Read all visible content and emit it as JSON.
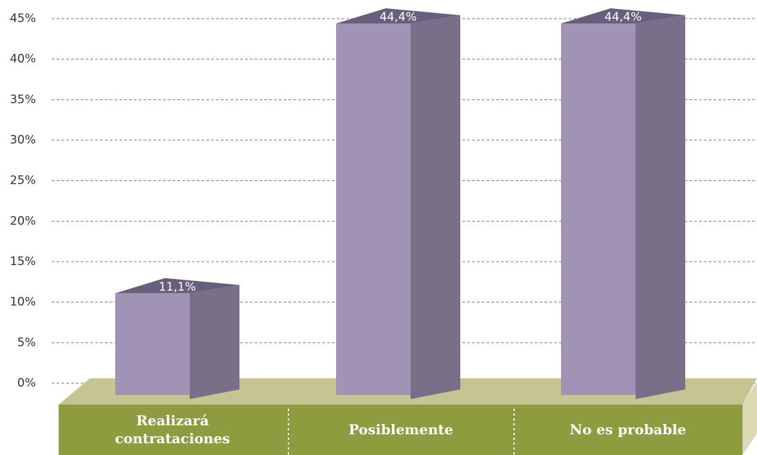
{
  "chart_data": {
    "type": "bar",
    "categories": [
      "Realizará contrataciones",
      "Posiblemente",
      "No es probable"
    ],
    "values": [
      11.1,
      44.4,
      44.4
    ],
    "value_labels": [
      "11,1%",
      "44,4%",
      "44,4%"
    ],
    "color": "#a193b5",
    "ylim": [
      0,
      45
    ],
    "yticks": [
      {
        "value": 0,
        "label": "0%"
      },
      {
        "value": 5,
        "label": "5%"
      },
      {
        "value": 10,
        "label": "10%"
      },
      {
        "value": 15,
        "label": "15%"
      },
      {
        "value": 20,
        "label": "20%"
      },
      {
        "value": 25,
        "label": "25%"
      },
      {
        "value": 30,
        "label": "30%"
      },
      {
        "value": 35,
        "label": "35%"
      },
      {
        "value": 40,
        "label": "40%"
      },
      {
        "value": 45,
        "label": "45%"
      }
    ],
    "grid": true
  }
}
